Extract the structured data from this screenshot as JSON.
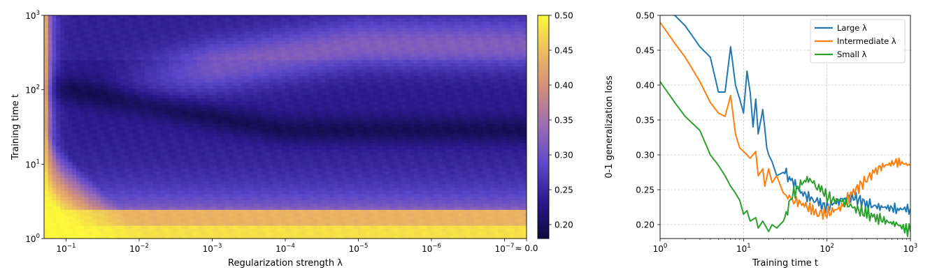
{
  "chart_data": [
    {
      "type": "heatmap",
      "xlabel": "Regularization strength λ",
      "ylabel": "Training time t",
      "x_axis": {
        "scale": "log-reversed",
        "range": [
          0.2,
          5e-08
        ],
        "ticks": [
          {
            "value": 0.1,
            "label": "10",
            "exp": "−1"
          },
          {
            "value": 0.01,
            "label": "10",
            "exp": "−2"
          },
          {
            "value": 0.001,
            "label": "10",
            "exp": "−3"
          },
          {
            "value": 0.0001,
            "label": "10",
            "exp": "−4"
          },
          {
            "value": 1e-05,
            "label": "10",
            "exp": "−5"
          },
          {
            "value": 1e-06,
            "label": "10",
            "exp": "−6"
          },
          {
            "value": 1e-07,
            "label": "10",
            "exp": "−7"
          }
        ],
        "end_label": "≈ 0.0"
      },
      "y_axis": {
        "scale": "log",
        "range": [
          1,
          1000
        ],
        "ticks": [
          {
            "value": 1,
            "label": "10",
            "exp": "0"
          },
          {
            "value": 10,
            "label": "10",
            "exp": "1"
          },
          {
            "value": 100,
            "label": "10",
            "exp": "2"
          },
          {
            "value": 1000,
            "label": "10",
            "exp": "3"
          }
        ]
      },
      "colorbar": {
        "range": [
          0.18,
          0.5
        ],
        "ticks": [
          "0.20",
          "0.25",
          "0.30",
          "0.35",
          "0.40",
          "0.45",
          "0.50"
        ],
        "tick_values": [
          0.2,
          0.25,
          0.3,
          0.35,
          0.4,
          0.45,
          0.5
        ]
      },
      "colormap": [
        "#0e0a3f",
        "#2c1a8e",
        "#5a47c9",
        "#9a6bb5",
        "#cf8e7d",
        "#ecb961",
        "#fcf83a"
      ],
      "regions": {
        "upper_left_band_value": 0.5,
        "dark_valley_value": 0.19,
        "rising_ridge_value": 0.31,
        "bottom_band_value": 0.44
      }
    },
    {
      "type": "line",
      "xlabel": "Training time t",
      "ylabel": "0-1 generalization loss",
      "x_axis": {
        "scale": "log",
        "range": [
          1,
          1000
        ],
        "ticks": [
          {
            "value": 1,
            "label": "10",
            "exp": "0"
          },
          {
            "value": 10,
            "label": "10",
            "exp": "1"
          },
          {
            "value": 100,
            "label": "10",
            "exp": "2"
          },
          {
            "value": 1000,
            "label": "10",
            "exp": "3"
          }
        ]
      },
      "y_axis": {
        "range": [
          0.18,
          0.5
        ],
        "ticks": [
          "0.20",
          "0.25",
          "0.30",
          "0.35",
          "0.40",
          "0.45",
          "0.50"
        ],
        "tick_values": [
          0.2,
          0.25,
          0.3,
          0.35,
          0.4,
          0.45,
          0.5
        ]
      },
      "grid": true,
      "legend_position": "top-right",
      "series": [
        {
          "name": "Large λ",
          "color": "#1f77b4",
          "x": [
            1,
            1.5,
            2,
            3,
            4,
            5,
            6,
            7,
            8,
            9,
            10,
            11,
            12,
            13,
            14,
            15,
            17,
            19,
            20,
            22,
            25,
            30,
            40,
            50,
            60,
            70,
            80,
            100,
            120,
            150,
            200,
            300,
            400,
            500,
            700,
            1000
          ],
          "y": [
            0.51,
            0.5,
            0.485,
            0.455,
            0.44,
            0.39,
            0.39,
            0.455,
            0.4,
            0.38,
            0.36,
            0.42,
            0.39,
            0.34,
            0.38,
            0.33,
            0.365,
            0.31,
            0.3,
            0.29,
            0.27,
            0.275,
            0.26,
            0.245,
            0.24,
            0.235,
            0.23,
            0.225,
            0.23,
            0.235,
            0.24,
            0.23,
            0.225,
            0.225,
            0.222,
            0.223
          ]
        },
        {
          "name": "Intermediate λ",
          "color": "#ff7f0e",
          "x": [
            1,
            1.5,
            2,
            3,
            4,
            5,
            6,
            7,
            8,
            9,
            10,
            11,
            12,
            14,
            15,
            17,
            18,
            20,
            22,
            25,
            30,
            40,
            50,
            60,
            70,
            80,
            100,
            120,
            150,
            200,
            300,
            400,
            500,
            700,
            1000
          ],
          "y": [
            0.49,
            0.46,
            0.44,
            0.405,
            0.375,
            0.36,
            0.355,
            0.385,
            0.33,
            0.31,
            0.305,
            0.3,
            0.295,
            0.305,
            0.27,
            0.28,
            0.255,
            0.28,
            0.26,
            0.27,
            0.245,
            0.235,
            0.23,
            0.225,
            0.22,
            0.218,
            0.215,
            0.22,
            0.225,
            0.245,
            0.265,
            0.28,
            0.285,
            0.29,
            0.285
          ]
        },
        {
          "name": "Small λ",
          "color": "#2ca02c",
          "x": [
            1,
            1.5,
            2,
            3,
            4,
            5,
            6,
            7,
            8,
            9,
            10,
            11,
            12,
            14,
            15,
            17,
            20,
            22,
            25,
            30,
            35,
            40,
            50,
            60,
            70,
            80,
            100,
            120,
            150,
            200,
            300,
            400,
            500,
            700,
            1000
          ],
          "y": [
            0.405,
            0.375,
            0.355,
            0.335,
            0.3,
            0.285,
            0.27,
            0.255,
            0.245,
            0.235,
            0.215,
            0.22,
            0.205,
            0.21,
            0.195,
            0.205,
            0.19,
            0.2,
            0.195,
            0.205,
            0.225,
            0.245,
            0.26,
            0.265,
            0.26,
            0.255,
            0.24,
            0.235,
            0.235,
            0.225,
            0.215,
            0.21,
            0.205,
            0.2,
            0.19
          ]
        }
      ]
    }
  ]
}
